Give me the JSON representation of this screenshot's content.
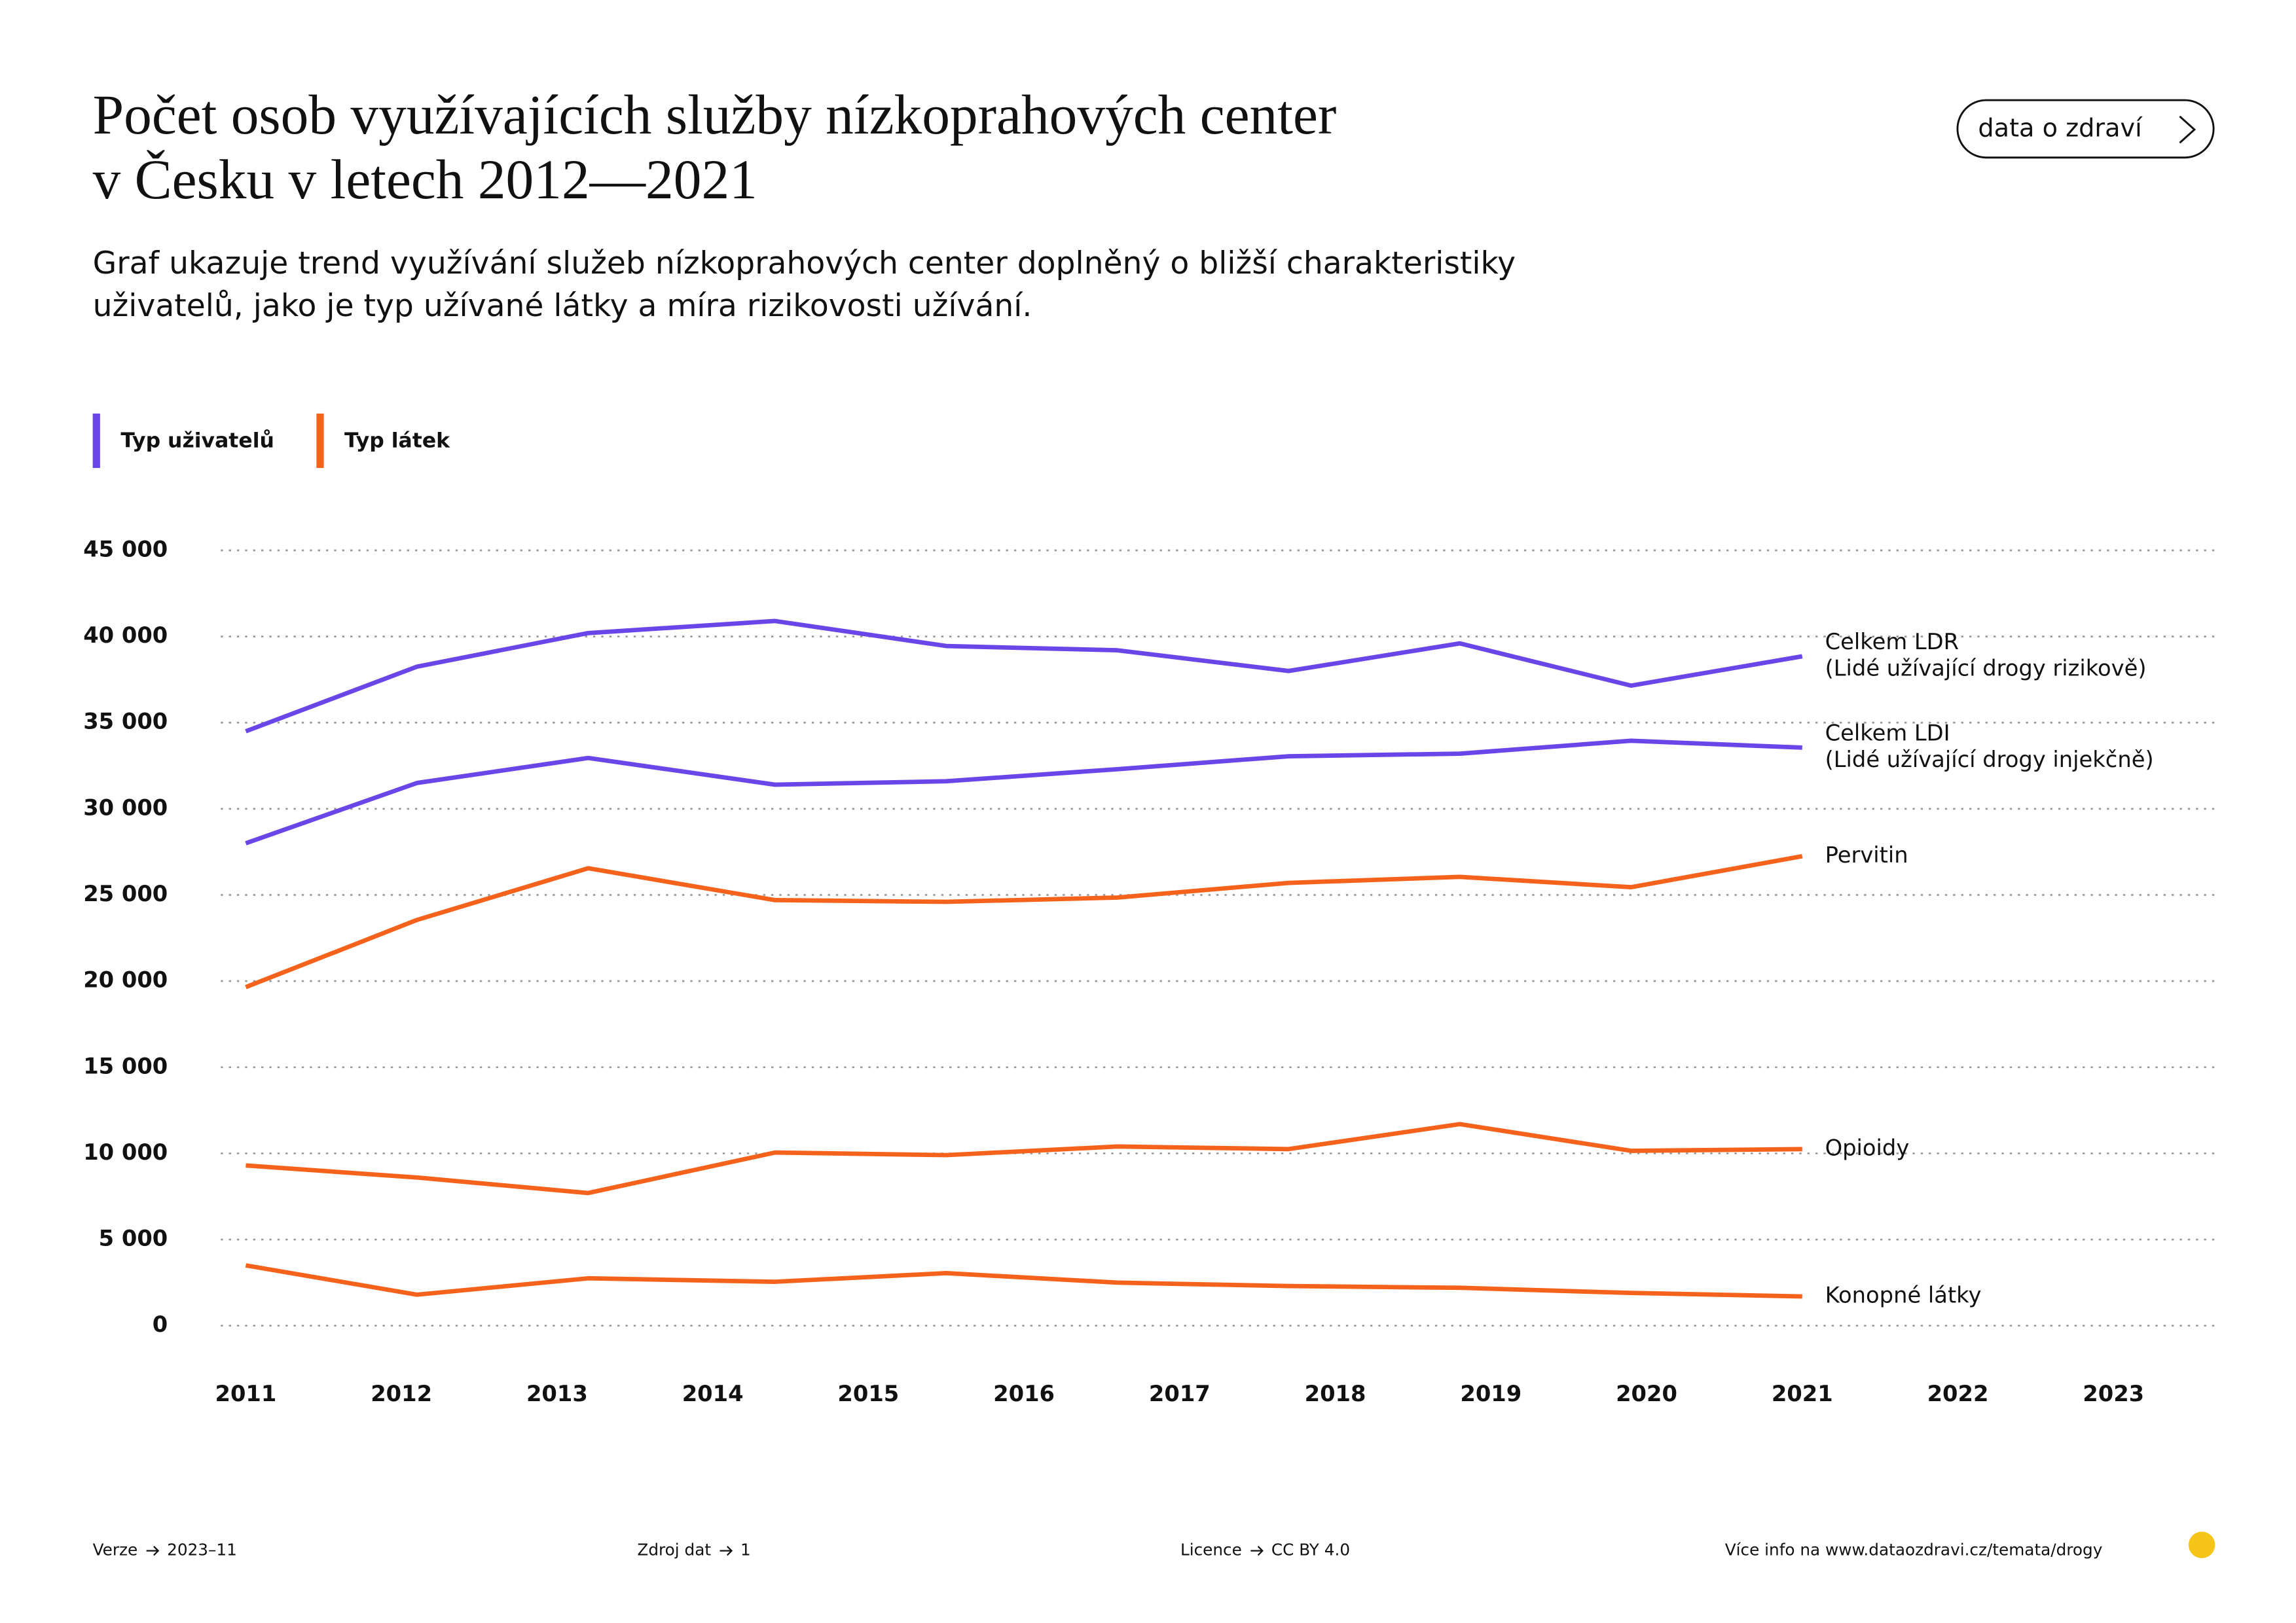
{
  "header": {
    "title": [
      "Počet osob využívajících služby nízkoprahových center",
      "v Česku v letech 2012—2021"
    ],
    "subtitle": [
      "Graf ukazuje trend využívání služeb nízkoprahových center doplněný o bližší charakteristiky",
      "uživatelů, jako je typ užívané látky a míra rizikovosti užívání."
    ],
    "button": "data o zdraví"
  },
  "chart_data": {
    "type": "line",
    "legend": [
      {
        "label": "Typ uživatelů",
        "color": "#6a45e8"
      },
      {
        "label": "Typ látek",
        "color": "#f4621b"
      }
    ],
    "x": [
      2011,
      2012.1,
      2013.2,
      2014.4,
      2015.5,
      2016.6,
      2017.7,
      2018.8,
      2019.9,
      2021
    ],
    "xlim": [
      2011,
      2023
    ],
    "xticks": [
      2011,
      2012,
      2013,
      2014,
      2015,
      2016,
      2017,
      2018,
      2019,
      2020,
      2021,
      2022,
      2023
    ],
    "ylim": [
      0,
      45000
    ],
    "yticks": [
      0,
      {
        "value": 5000,
        "label": "5 000"
      },
      {
        "value": 10000,
        "label": "10 000"
      },
      {
        "value": 15000,
        "label": "15 000"
      },
      {
        "value": 20000,
        "label": "20 000"
      },
      {
        "value": 25000,
        "label": "25 000"
      },
      {
        "value": 30000,
        "label": "30 000"
      },
      {
        "value": 35000,
        "label": "35 000"
      },
      {
        "value": 40000,
        "label": "40 000"
      },
      {
        "value": 45000,
        "label": "45 000"
      }
    ],
    "grid": true,
    "series": [
      {
        "name": [
          "Celkem LDR",
          "(Lidé užívající drogy rizikově)"
        ],
        "color": "#6a45e8",
        "values": [
          34500,
          38250,
          40200,
          40900,
          39450,
          39200,
          38000,
          39600,
          37150,
          38850
        ]
      },
      {
        "name": [
          "Celkem LDI",
          "(Lidé užívající drogy injekčně)"
        ],
        "color": "#6a45e8",
        "values": [
          28000,
          31500,
          32950,
          31400,
          31600,
          32300,
          33050,
          33200,
          33950,
          33550
        ]
      },
      {
        "name": [
          "Pervitin"
        ],
        "color": "#f4621b",
        "values": [
          19650,
          23550,
          26550,
          24700,
          24600,
          24850,
          25700,
          26050,
          25450,
          27250
        ]
      },
      {
        "name": [
          "Opioidy"
        ],
        "color": "#f4621b",
        "values": [
          9300,
          8600,
          7700,
          10050,
          9900,
          10400,
          10250,
          11700,
          10150,
          10250
        ]
      },
      {
        "name": [
          "Konopné látky"
        ],
        "color": "#f4621b",
        "values": [
          3500,
          1800,
          2750,
          2550,
          3050,
          2500,
          2300,
          2200,
          1900,
          1700
        ]
      }
    ]
  },
  "footer": [
    {
      "label": "Verze",
      "value": "2023–11"
    },
    {
      "label": "Zdroj dat",
      "value": "1"
    },
    {
      "label": "Licence",
      "value": "CC BY 4.0"
    },
    {
      "label": "Více info na www.dataozdravi.cz/temata/drogy"
    }
  ]
}
